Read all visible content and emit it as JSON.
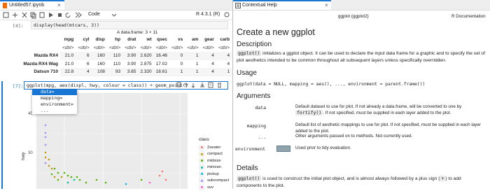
{
  "notebook": {
    "tab": "Untitled57.ipynb",
    "cell_type": "Code",
    "kernel": "R 4.3.1 (R)",
    "cells": [
      {
        "prompt": "[4]:",
        "source": "display(head(mtcars, 3))"
      },
      {
        "prompt": "[7]:",
        "source": "ggplot(mpg, aes(displ, hwy, colour = class)) + geom_point()"
      }
    ],
    "output_table": {
      "caption": "A data.frame: 3 × 11",
      "columns": [
        "mpg",
        "cyl",
        "disp",
        "hp",
        "drat",
        "wt",
        "qsec",
        "vs",
        "am",
        "gear",
        "carb"
      ],
      "types": [
        "<dbl>",
        "<dbl>",
        "<dbl>",
        "<dbl>",
        "<dbl>",
        "<dbl>",
        "<dbl>",
        "<dbl>",
        "<dbl>",
        "<dbl>",
        "<dbl>"
      ],
      "rows": [
        [
          "Mazda RX4",
          "21.0",
          "6",
          "160",
          "110",
          "3.90",
          "2.620",
          "16.46",
          "0",
          "1",
          "4",
          "4"
        ],
        [
          "Mazda RX4 Wag",
          "21.0",
          "6",
          "160",
          "110",
          "3.90",
          "2.875",
          "17.02",
          "0",
          "1",
          "4",
          "4"
        ],
        [
          "Datsun 710",
          "22.8",
          "4",
          "108",
          "93",
          "3.85",
          "2.320",
          "18.61",
          "1",
          "1",
          "4",
          "1"
        ]
      ]
    },
    "completions": [
      "data=",
      "mapping=",
      "environment=",
      "..."
    ],
    "plot": {
      "y_label": "hwy",
      "y_ticks": [
        "40",
        "30"
      ],
      "legend_title": "class",
      "legend": [
        {
          "label": "2seater",
          "color": "#F8766D"
        },
        {
          "label": "compact",
          "color": "#C49A00"
        },
        {
          "label": "midsize",
          "color": "#53B400"
        },
        {
          "label": "minivan",
          "color": "#00C094"
        },
        {
          "label": "pickup",
          "color": "#00B6EB"
        },
        {
          "label": "subcompact",
          "color": "#A58AFF"
        },
        {
          "label": "suv",
          "color": "#FB61D7"
        }
      ]
    }
  },
  "help": {
    "tab": "Contextual Help",
    "topic": "ggplot {ggplot2}",
    "source": "R Documentation",
    "title": "Create a new ggplot",
    "description_heading": "Description",
    "description": [
      "ggplot()",
      " initializes a ggplot object. It can be used to declare the input data frame for a graphic and to specify the set of plot aesthetics intended to be common throughout all subsequent layers unless specifically overridden."
    ],
    "usage_heading": "Usage",
    "usage": "ggplot(data = NULL, mapping = aes(), ..., environment = parent.frame())",
    "arguments_heading": "Arguments",
    "arguments": [
      {
        "name": "data",
        "text": [
          "Default dataset to use for plot. If not already a data.frame, will be converted to one by ",
          "fortify()",
          ". If not specified, must be supplied in each layer added to the plot."
        ]
      },
      {
        "name": "mapping",
        "text": [
          "Default list of aesthetic mappings to use for plot. If not specified, must be supplied in each layer added to the plot."
        ]
      },
      {
        "name": "...",
        "text": [
          "Other arguments passed on to methods. Not currently used."
        ]
      },
      {
        "name": "environment",
        "text": [
          "Used prior to tidy evaluation."
        ]
      }
    ],
    "details_heading": "Details",
    "details": [
      "ggplot()",
      " is used to construct the initial plot object, and is almost always followed by a plus sign (",
      "+",
      ") to add components to the plot."
    ]
  }
}
